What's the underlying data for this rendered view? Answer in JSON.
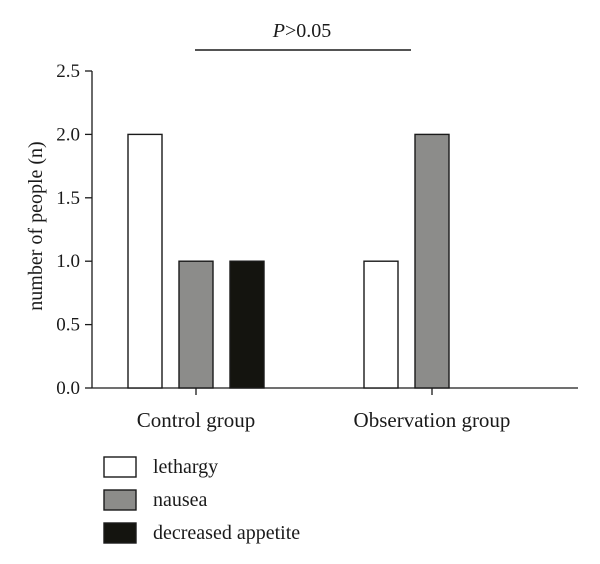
{
  "chart_data": {
    "type": "bar",
    "categories": [
      "Control group",
      "Observation group"
    ],
    "series": [
      {
        "name": "lethargy",
        "values": [
          2,
          1
        ],
        "color": "#ffffff"
      },
      {
        "name": "nausea",
        "values": [
          1,
          2
        ],
        "color": "#8c8c8a"
      },
      {
        "name": "decreased appetite",
        "values": [
          1,
          0
        ],
        "color": "#14140f"
      }
    ],
    "title": "",
    "xlabel": "",
    "ylabel": "number of people (n)",
    "ylim": [
      0,
      2.5
    ],
    "yticks": [
      "0.0",
      "0.5",
      "1.0",
      "1.5",
      "2.0",
      "2.5"
    ],
    "annotation": {
      "italic": "P",
      "rest": ">0.05"
    },
    "legend_position": "bottom-left",
    "grid": false
  }
}
